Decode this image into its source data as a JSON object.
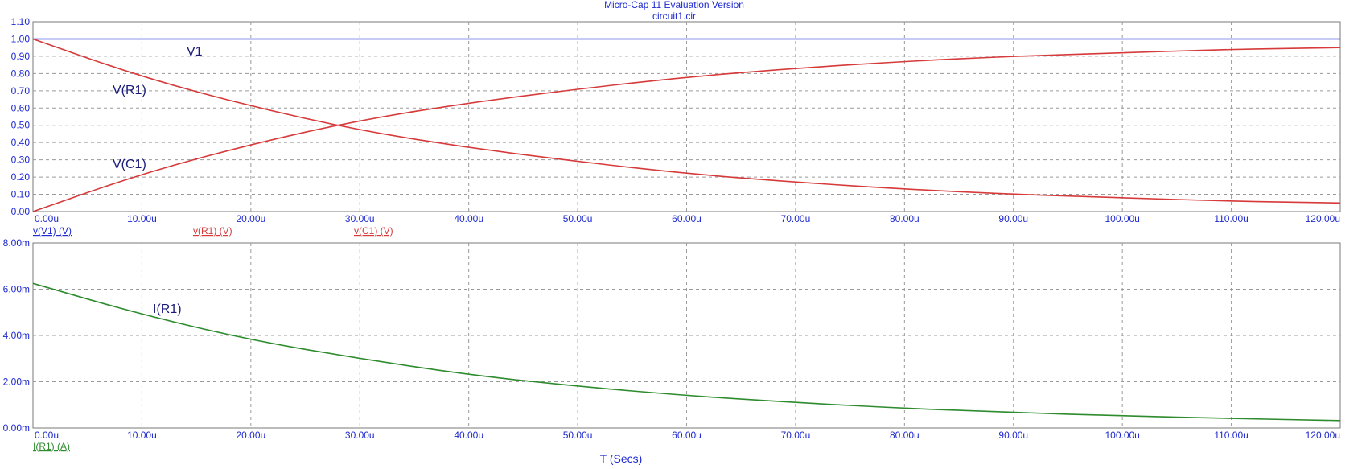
{
  "header": {
    "title": "Micro-Cap 11 Evaluation Version",
    "file": "circuit1.cir"
  },
  "colors": {
    "axis_text": "#1f2ad1",
    "v1": "#1f2ad1",
    "red_trace": "#d63a3a",
    "green_trace": "#2e8b2e",
    "grid": "#9a9a9a"
  },
  "chart_data": [
    {
      "type": "line",
      "xlabel": "",
      "ylabel": "",
      "xlim": [
        0,
        120
      ],
      "ylim": [
        0,
        1.1
      ],
      "x_ticks": [
        "0.00u",
        "10.00u",
        "20.00u",
        "30.00u",
        "40.00u",
        "50.00u",
        "60.00u",
        "70.00u",
        "80.00u",
        "90.00u",
        "100.00u",
        "110.00u",
        "120.00u"
      ],
      "y_ticks": [
        "0.00",
        "0.10",
        "0.20",
        "0.30",
        "0.40",
        "0.50",
        "0.60",
        "0.70",
        "0.80",
        "0.90",
        "1.00",
        "1.10"
      ],
      "grid": true,
      "legend": [
        "v(V1) (V)",
        "v(R1) (V)",
        "v(C1) (V)"
      ],
      "series": [
        {
          "name": "V1",
          "x": [
            0,
            10,
            20,
            30,
            40,
            50,
            60,
            70,
            80,
            90,
            100,
            110,
            120
          ],
          "values": [
            1,
            1,
            1,
            1,
            1,
            1,
            1,
            1,
            1,
            1,
            1,
            1,
            1
          ]
        },
        {
          "name": "V(R1)",
          "x": [
            0,
            10,
            20,
            30,
            40,
            50,
            60,
            70,
            80,
            90,
            100,
            110,
            120
          ],
          "values": [
            1.0,
            0.78,
            0.61,
            0.47,
            0.37,
            0.29,
            0.22,
            0.17,
            0.13,
            0.1,
            0.08,
            0.06,
            0.05
          ]
        },
        {
          "name": "V(C1)",
          "x": [
            0,
            10,
            20,
            30,
            40,
            50,
            60,
            70,
            80,
            90,
            100,
            110,
            120
          ],
          "values": [
            0.0,
            0.22,
            0.39,
            0.53,
            0.63,
            0.71,
            0.78,
            0.83,
            0.87,
            0.9,
            0.92,
            0.94,
            0.95
          ]
        }
      ]
    },
    {
      "type": "line",
      "xlabel": "T (Secs)",
      "ylabel": "",
      "xlim": [
        0,
        120
      ],
      "ylim": [
        0,
        8
      ],
      "x_ticks": [
        "0.00u",
        "10.00u",
        "20.00u",
        "30.00u",
        "40.00u",
        "50.00u",
        "60.00u",
        "70.00u",
        "80.00u",
        "90.00u",
        "100.00u",
        "110.00u",
        "120.00u"
      ],
      "y_ticks": [
        "0.00m",
        "2.00m",
        "4.00m",
        "6.00m",
        "8.00m"
      ],
      "grid": true,
      "legend": [
        "I(R1) (A)"
      ],
      "series": [
        {
          "name": "I(R1)",
          "x": [
            0,
            10,
            20,
            30,
            40,
            50,
            60,
            70,
            80,
            90,
            100,
            110,
            120
          ],
          "values": [
            6.25,
            4.9,
            3.8,
            3.0,
            2.3,
            1.8,
            1.4,
            1.1,
            0.85,
            0.67,
            0.52,
            0.41,
            0.32
          ]
        }
      ]
    }
  ]
}
